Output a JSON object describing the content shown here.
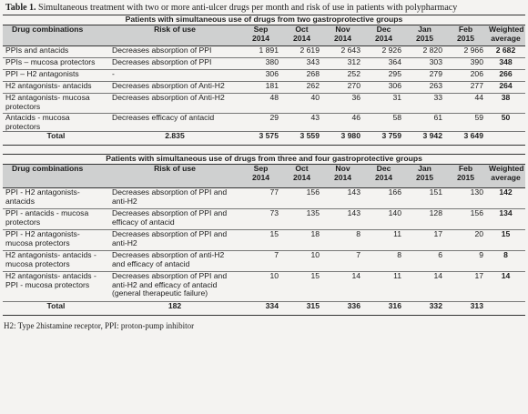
{
  "caption": {
    "label": "Table 1.",
    "text": "Simultaneous treatment with two or more anti-ulcer drugs per month and risk of use in patients with polypharmacy"
  },
  "table1": {
    "group_title": "Patients with simultaneous use of drugs from two gastroprotective groups",
    "headers": [
      "Drug combinations",
      "Risk of use",
      "Sep\n2014",
      "Oct\n2014",
      "Nov\n2014",
      "Dec\n2014",
      "Jan\n2015",
      "Feb\n2015",
      "Weighted\naverage"
    ],
    "rows": [
      [
        "PPIs and antacids",
        "Decreases absorption of PPI",
        "1 891",
        "2 619",
        "2 643",
        "2 926",
        "2 820",
        "2 966",
        "2 682"
      ],
      [
        "PPIs – mucosa protectors",
        "Decreases absorption of PPI",
        "380",
        "343",
        "312",
        "364",
        "303",
        "390",
        "348"
      ],
      [
        "PPI – H2 antagonists",
        "-",
        "306",
        "268",
        "252",
        "295",
        "279",
        "206",
        "266"
      ],
      [
        "H2 antagonists- antacids",
        "Decreases absorption of Anti-H2",
        "181",
        "262",
        "270",
        "306",
        "263",
        "277",
        "264"
      ],
      [
        "H2 antagonists- mucosa protectors",
        "Decreases absorption of Anti-H2",
        "48",
        "40",
        "36",
        "31",
        "33",
        "44",
        "38"
      ],
      [
        "Antacids - mucosa protectors",
        "Decreases efficacy of antacid",
        "29",
        "43",
        "46",
        "58",
        "61",
        "59",
        "50"
      ]
    ],
    "total": [
      "Total",
      "2.835",
      "3 575",
      "3 559",
      "3 980",
      "3 759",
      "3 942",
      "3 649",
      ""
    ]
  },
  "table2": {
    "group_title": "Patients with simultaneous use of drugs from three and four gastroprotective groups",
    "headers": [
      "Drug combinations",
      "Risk of use",
      "Sep\n2014",
      "Oct\n2014",
      "Nov\n2014",
      "Dec\n2014",
      "Jan\n2015",
      "Feb\n2015",
      "Weighted\naverage"
    ],
    "rows": [
      [
        "PPI - H2 antagonists- antacids",
        "Decreases absorption of PPI and anti-H2",
        "77",
        "156",
        "143",
        "166",
        "151",
        "130",
        "142"
      ],
      [
        "PPI - antacids - mucosa protectors",
        "Decreases absorption of PPI and efficacy of antacid",
        "73",
        "135",
        "143",
        "140",
        "128",
        "156",
        "134"
      ],
      [
        "PPI - H2 antagonists- mucosa protectors",
        "Decreases absorption of PPI and anti-H2",
        "15",
        "18",
        "8",
        "11",
        "17",
        "20",
        "15"
      ],
      [
        "H2 antagonists- antacids - mucosa protectors",
        "Decreases absorption of anti-H2 and efficacy of antacid",
        "7",
        "10",
        "7",
        "8",
        "6",
        "9",
        "8"
      ],
      [
        "H2 antagonists- antacids - PPI - mucosa protectors",
        "Decreases absorption of PPI and anti-H2 and efficacy of antacid (general therapeutic failure)",
        "10",
        "15",
        "14",
        "11",
        "14",
        "17",
        "14"
      ]
    ],
    "total": [
      "Total",
      "182",
      "334",
      "315",
      "336",
      "316",
      "332",
      "313",
      ""
    ]
  },
  "footnote": "H2: Type 2histamine receptor, PPI: proton-pump inhibitor"
}
